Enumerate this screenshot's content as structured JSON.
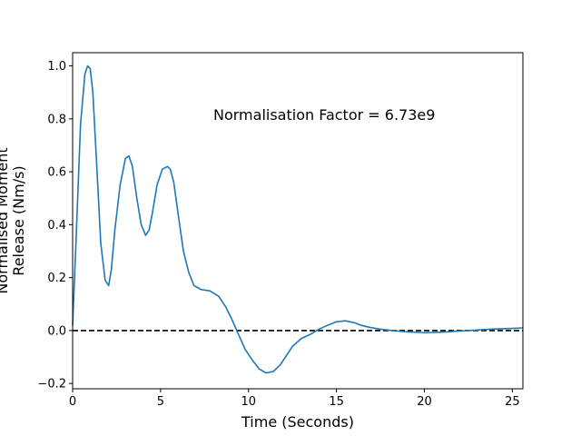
{
  "chart_data": {
    "type": "line",
    "xlabel": "Time (Seconds)",
    "ylabel_lines": [
      "Normalised Moment",
      "Release (Nm/s)"
    ],
    "annotation": "Normalisation Factor = 6.73e9",
    "xlim": [
      0,
      25.6
    ],
    "ylim": [
      -0.22,
      1.05
    ],
    "x_ticks": [
      0,
      5,
      10,
      15,
      20,
      25
    ],
    "y_ticks": [
      -0.2,
      0.0,
      0.2,
      0.4,
      0.6,
      0.8,
      1.0
    ],
    "x_tick_labels": [
      "0",
      "5",
      "10",
      "15",
      "20",
      "25"
    ],
    "y_tick_labels": [
      "−0.2",
      "0.0",
      "0.2",
      "0.4",
      "0.6",
      "0.8",
      "1.0"
    ],
    "grid": false,
    "reference_line": {
      "y": 0,
      "style": "dashed",
      "color": "#000000"
    },
    "series": [
      {
        "color": "#1f77b4",
        "x": [
          0,
          0.2,
          0.45,
          0.7,
          0.85,
          1.0,
          1.15,
          1.35,
          1.6,
          1.85,
          2.05,
          2.2,
          2.4,
          2.7,
          3.0,
          3.2,
          3.4,
          3.65,
          3.9,
          4.15,
          4.35,
          4.55,
          4.8,
          5.1,
          5.4,
          5.55,
          5.75,
          6.0,
          6.3,
          6.6,
          6.9,
          7.3,
          7.8,
          8.3,
          8.7,
          9.0,
          9.4,
          9.8,
          10.2,
          10.6,
          11.0,
          11.4,
          11.8,
          12.1,
          12.5,
          13.0,
          13.5,
          14.0,
          14.5,
          15.0,
          15.5,
          16.0,
          16.4,
          16.9,
          17.5,
          18.2,
          19.0,
          20.0,
          21.0,
          22.0,
          23.0,
          24.0,
          25.0,
          25.6
        ],
        "y": [
          0.02,
          0.35,
          0.78,
          0.97,
          1.0,
          0.99,
          0.9,
          0.65,
          0.33,
          0.19,
          0.17,
          0.23,
          0.38,
          0.55,
          0.65,
          0.66,
          0.62,
          0.5,
          0.4,
          0.36,
          0.38,
          0.45,
          0.55,
          0.61,
          0.62,
          0.61,
          0.56,
          0.44,
          0.3,
          0.22,
          0.17,
          0.155,
          0.15,
          0.13,
          0.09,
          0.05,
          -0.01,
          -0.07,
          -0.11,
          -0.145,
          -0.16,
          -0.155,
          -0.13,
          -0.1,
          -0.06,
          -0.03,
          -0.015,
          0.005,
          0.02,
          0.033,
          0.037,
          0.03,
          0.02,
          0.012,
          0.005,
          0.0,
          -0.005,
          -0.008,
          -0.006,
          -0.002,
          0.002,
          0.006,
          0.008,
          0.01
        ]
      }
    ]
  }
}
